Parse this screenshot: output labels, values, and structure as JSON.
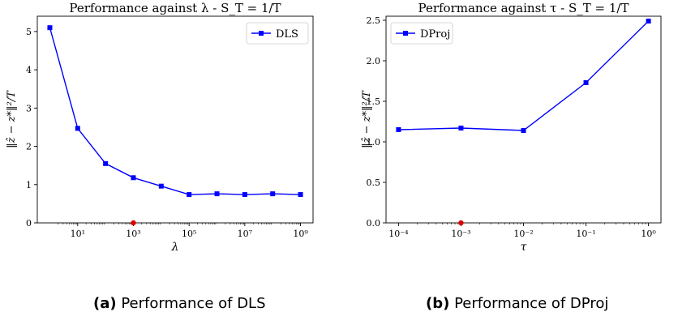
{
  "captions": [
    {
      "label": "(a)",
      "text": "Performance of DLS"
    },
    {
      "label": "(b)",
      "text": "Performance of DProj"
    }
  ],
  "chart_data": [
    {
      "type": "line",
      "title": "Performance against λ - S_T = 1/T",
      "xlabel": "λ",
      "ylabel": "‖ẑ − z*‖²/T",
      "xscale": "log",
      "xlim": [
        1,
        1000000000
      ],
      "ylim": [
        0,
        5.4
      ],
      "xticks": [
        10,
        1000,
        100000,
        10000000,
        1000000000
      ],
      "xtick_labels": [
        "10¹",
        "10³",
        "10⁵",
        "10⁷",
        "10⁹"
      ],
      "yticks": [
        0,
        1,
        2,
        3,
        4,
        5
      ],
      "ytick_labels": [
        "0",
        "1",
        "2",
        "3",
        "4",
        "5"
      ],
      "legend": "top-right",
      "grid": false,
      "series": [
        {
          "name": "DLS",
          "color": "#0000ff",
          "marker": "square",
          "x": [
            1,
            10,
            100,
            1000,
            10000,
            100000,
            1000000,
            10000000,
            100000000,
            1000000000
          ],
          "y": [
            5.1,
            2.47,
            1.55,
            1.18,
            0.96,
            0.74,
            0.76,
            0.74,
            0.76,
            0.74
          ]
        }
      ],
      "highlight_point": {
        "x": 1000,
        "y": 0,
        "color": "#dd0000"
      }
    },
    {
      "type": "line",
      "title": "Performance against τ - S_T = 1/T",
      "xlabel": "τ",
      "ylabel": "‖ẑ − z*‖²/T",
      "xscale": "log",
      "xlim": [
        0.0001,
        1
      ],
      "ylim": [
        0,
        2.55
      ],
      "xticks": [
        0.0001,
        0.001,
        0.01,
        0.1,
        1
      ],
      "xtick_labels": [
        "10⁻⁴",
        "10⁻³",
        "10⁻²",
        "10⁻¹",
        "10⁰"
      ],
      "yticks": [
        0,
        0.5,
        1.0,
        1.5,
        2.0,
        2.5
      ],
      "ytick_labels": [
        "0.0",
        "0.5",
        "1.0",
        "1.5",
        "2.0",
        "2.5"
      ],
      "legend": "top-left",
      "grid": false,
      "series": [
        {
          "name": "DProj",
          "color": "#0000ff",
          "marker": "square",
          "x": [
            0.0001,
            0.001,
            0.01,
            0.1,
            1
          ],
          "y": [
            1.15,
            1.17,
            1.14,
            1.73,
            2.49
          ]
        }
      ],
      "highlight_point": {
        "x": 0.001,
        "y": 0,
        "color": "#dd0000"
      }
    }
  ]
}
